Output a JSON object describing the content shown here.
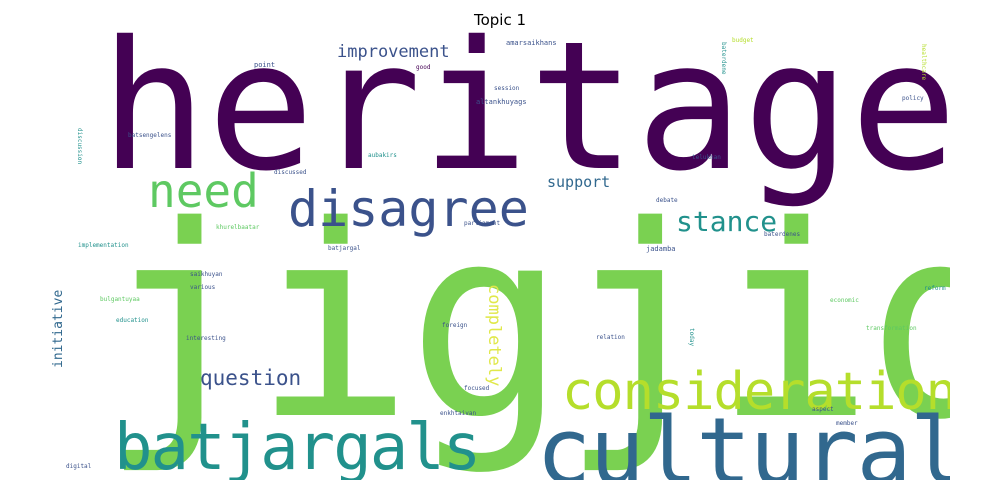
{
  "title": "Topic 1",
  "palette": {
    "dark_purple": "#440154",
    "indigo": "#3b528b",
    "slate_blue": "#31688e",
    "teal": "#21918c",
    "green": "#5ec962",
    "lime": "#7ad151",
    "yellow_green": "#b5de2b"
  },
  "words": {
    "heritage": "heritage",
    "jigjid": "jigjid",
    "cultural": "cultural",
    "batjargals": "batjargals",
    "consideration": "consideration",
    "disagree": "disagree",
    "need": "need",
    "stance": "stance",
    "question": "question",
    "improvement": "improvement",
    "support": "support",
    "completely": "completely",
    "initiative": "initiative",
    "amarsaikhans": "amarsaikhans",
    "good": "good",
    "point": "point",
    "session": "session",
    "altankhuyags": "altankhuyags",
    "budget": "budget",
    "baterdene": "baterdene",
    "healthcare": "healthcare",
    "policy": "policy",
    "batsengelens": "batsengelens",
    "discussion": "discussion",
    "aubakirs": "aubakirs",
    "telukhan": "telukhan",
    "discussed": "discussed",
    "debate": "debate",
    "khurelbaatar": "khurelbaatar",
    "parliament": "parliament",
    "baterdenes": "baterdenes",
    "implementation": "implementation",
    "batjargal": "batjargal",
    "jadamba": "jadamba",
    "saikhuyan": "saikhuyan",
    "various": "various",
    "bulgantuyaa": "bulgantuyaa",
    "economic": "economic",
    "reform": "reform",
    "education": "education",
    "transformation": "transformation",
    "interesting": "interesting",
    "foreign": "foreign",
    "relation": "relation",
    "today": "today",
    "focused": "focused",
    "enkhtaivan": "enkhtaivan",
    "aspect": "aspect",
    "member": "member",
    "digital": "digital"
  }
}
